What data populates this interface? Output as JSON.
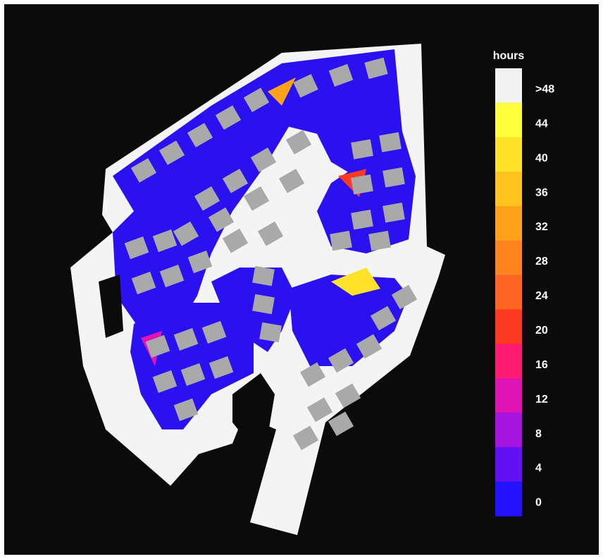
{
  "legend": {
    "title": "hours",
    "items": [
      {
        "label": ">48",
        "color": "#f2f2f2"
      },
      {
        "label": "44",
        "color": "#ffff3c"
      },
      {
        "label": "40",
        "color": "#ffe22a"
      },
      {
        "label": "36",
        "color": "#ffc21e"
      },
      {
        "label": "32",
        "color": "#ffa21a"
      },
      {
        "label": "28",
        "color": "#ff8420"
      },
      {
        "label": "24",
        "color": "#ff6420"
      },
      {
        "label": "20",
        "color": "#ff3a22"
      },
      {
        "label": "16",
        "color": "#ff1a72"
      },
      {
        "label": "12",
        "color": "#e014b4"
      },
      {
        "label": "8",
        "color": "#a614e0"
      },
      {
        "label": "4",
        "color": "#6212f2"
      },
      {
        "label": "0",
        "color": "#2212ff"
      }
    ]
  }
}
